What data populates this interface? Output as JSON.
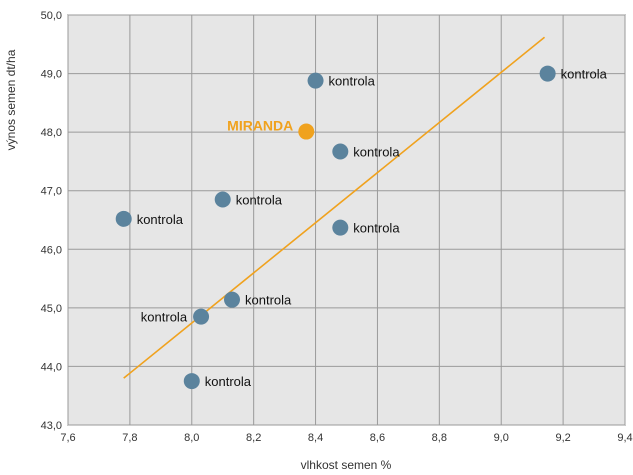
{
  "chart_data": {
    "type": "scatter",
    "title": "",
    "xlabel": "vlhkost semen %",
    "ylabel": "výnos semen dt/ha",
    "xlim": [
      7.6,
      9.4
    ],
    "ylim": [
      43.0,
      50.0
    ],
    "x_ticks": [
      "7,6",
      "7,8",
      "8,0",
      "8,2",
      "8,4",
      "8,6",
      "8,8",
      "9,0",
      "9,2",
      "9,4"
    ],
    "y_ticks": [
      "43,0",
      "44,0",
      "45,0",
      "46,0",
      "47,0",
      "48,0",
      "49,0",
      "50,0"
    ],
    "grid": true,
    "colors": {
      "point": "#5b839d",
      "highlight": "#f0a21e",
      "trend": "#f0a21e",
      "plot_bg": "#e6e6e6"
    },
    "points": [
      {
        "x": 7.78,
        "y": 46.52,
        "label": "kontrola",
        "highlight": false
      },
      {
        "x": 8.0,
        "y": 43.75,
        "label": "kontrola",
        "highlight": false
      },
      {
        "x": 8.03,
        "y": 44.85,
        "label": "kontrola",
        "highlight": false
      },
      {
        "x": 8.1,
        "y": 46.85,
        "label": "kontrola",
        "highlight": false
      },
      {
        "x": 8.13,
        "y": 45.14,
        "label": "kontrola",
        "highlight": false
      },
      {
        "x": 8.37,
        "y": 48.01,
        "label": "MIRANDA",
        "highlight": true
      },
      {
        "x": 8.4,
        "y": 48.88,
        "label": "kontrola",
        "highlight": false
      },
      {
        "x": 8.48,
        "y": 47.67,
        "label": "kontrola",
        "highlight": false
      },
      {
        "x": 8.48,
        "y": 46.37,
        "label": "kontrola",
        "highlight": false
      },
      {
        "x": 9.15,
        "y": 49.0,
        "label": "kontrola",
        "highlight": false
      }
    ],
    "trendline": {
      "x": [
        7.78,
        9.14
      ],
      "y": [
        43.8,
        49.62
      ]
    }
  }
}
